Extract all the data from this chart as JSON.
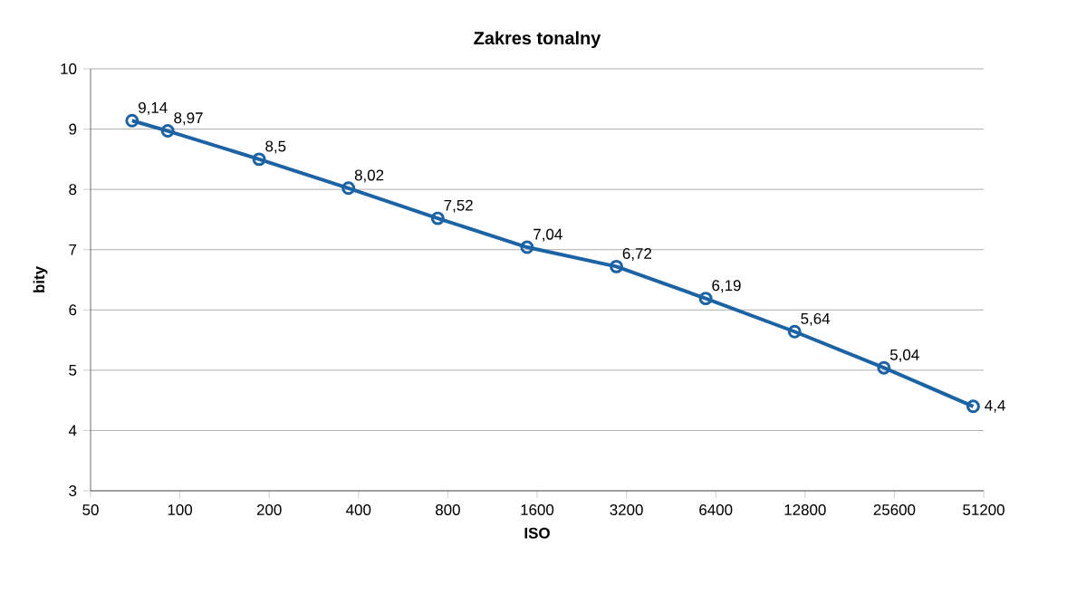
{
  "chart_data": {
    "type": "line",
    "title": "Zakres tonalny",
    "xlabel": "ISO",
    "ylabel": "bity",
    "x": [
      69,
      91,
      185,
      370,
      740,
      1480,
      2960,
      5920,
      11800,
      23600,
      47200
    ],
    "series": [
      {
        "color": "#1b63a5",
        "values": [
          9.14,
          8.97,
          8.5,
          8.02,
          7.52,
          7.04,
          6.72,
          6.19,
          5.64,
          5.04,
          4.4
        ],
        "value_labels": [
          "9,14",
          "8,97",
          "8,5",
          "8,02",
          "7,52",
          "7,04",
          "6,72",
          "6,19",
          "5,64",
          "5,04",
          "4,4"
        ]
      }
    ],
    "log": "x",
    "xlim": [
      50,
      51200
    ],
    "xticks": [
      50,
      100,
      200,
      400,
      800,
      1600,
      3200,
      6400,
      12800,
      25600,
      51200
    ],
    "ylim": [
      3,
      10
    ],
    "yticks": [
      3,
      4,
      5,
      6,
      7,
      8,
      9,
      10
    ],
    "grid": "y",
    "marker": "circle",
    "line_style": "solid"
  }
}
